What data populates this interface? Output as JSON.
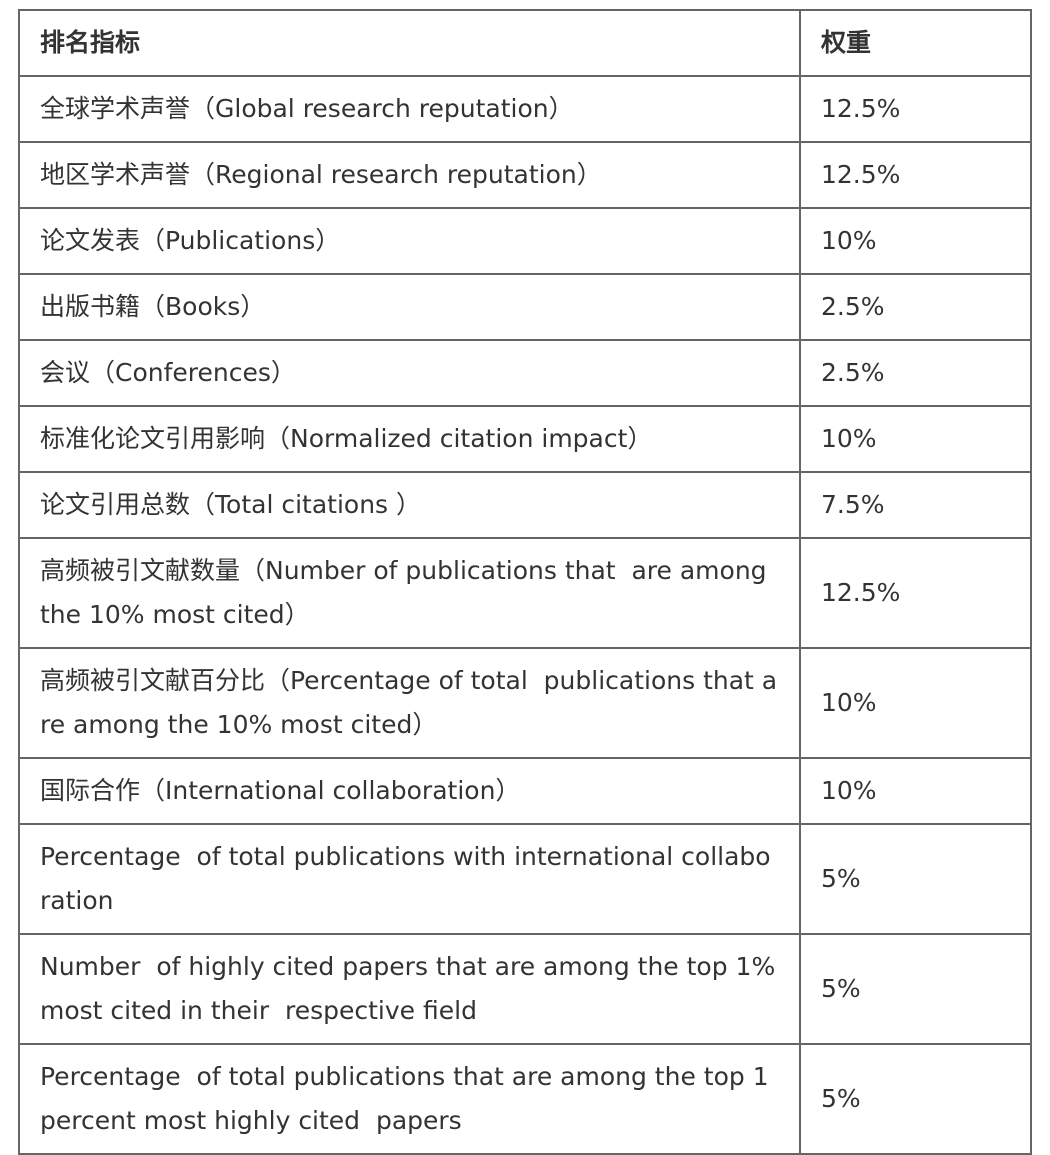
{
  "table": {
    "header": [
      "排名指标",
      "权重"
    ],
    "rows": [
      [
        "全球学术声誉（Global research reputation）",
        "12.5%"
      ],
      [
        "地区学术声誉（Regional research reputation）",
        "12.5%"
      ],
      [
        "论文发表（Publications）",
        "10%"
      ],
      [
        "出版书籍（Books）",
        "2.5%"
      ],
      [
        "会议（Conferences）",
        "2.5%"
      ],
      [
        "标准化论文引用影响（Normalized citation impact）",
        "10%"
      ],
      [
        "论文引用总数（Total citations ）",
        "7.5%"
      ],
      [
        "高频被引文献数量（Number of publications that  are among the 10% most cited）",
        "12.5%"
      ],
      [
        "高频被引文献百分比（Percentage of total  publications that are among the 10% most cited）",
        "10%"
      ],
      [
        "国际合作（International collaboration）",
        "10%"
      ],
      [
        "Percentage  of total publications with international collaboration",
        "5%"
      ],
      [
        "Number  of highly cited papers that are among the top 1% most cited in their  respective field",
        "5%"
      ],
      [
        "Percentage  of total publications that are among the top 1 percent most highly cited  papers",
        "5%"
      ]
    ]
  }
}
